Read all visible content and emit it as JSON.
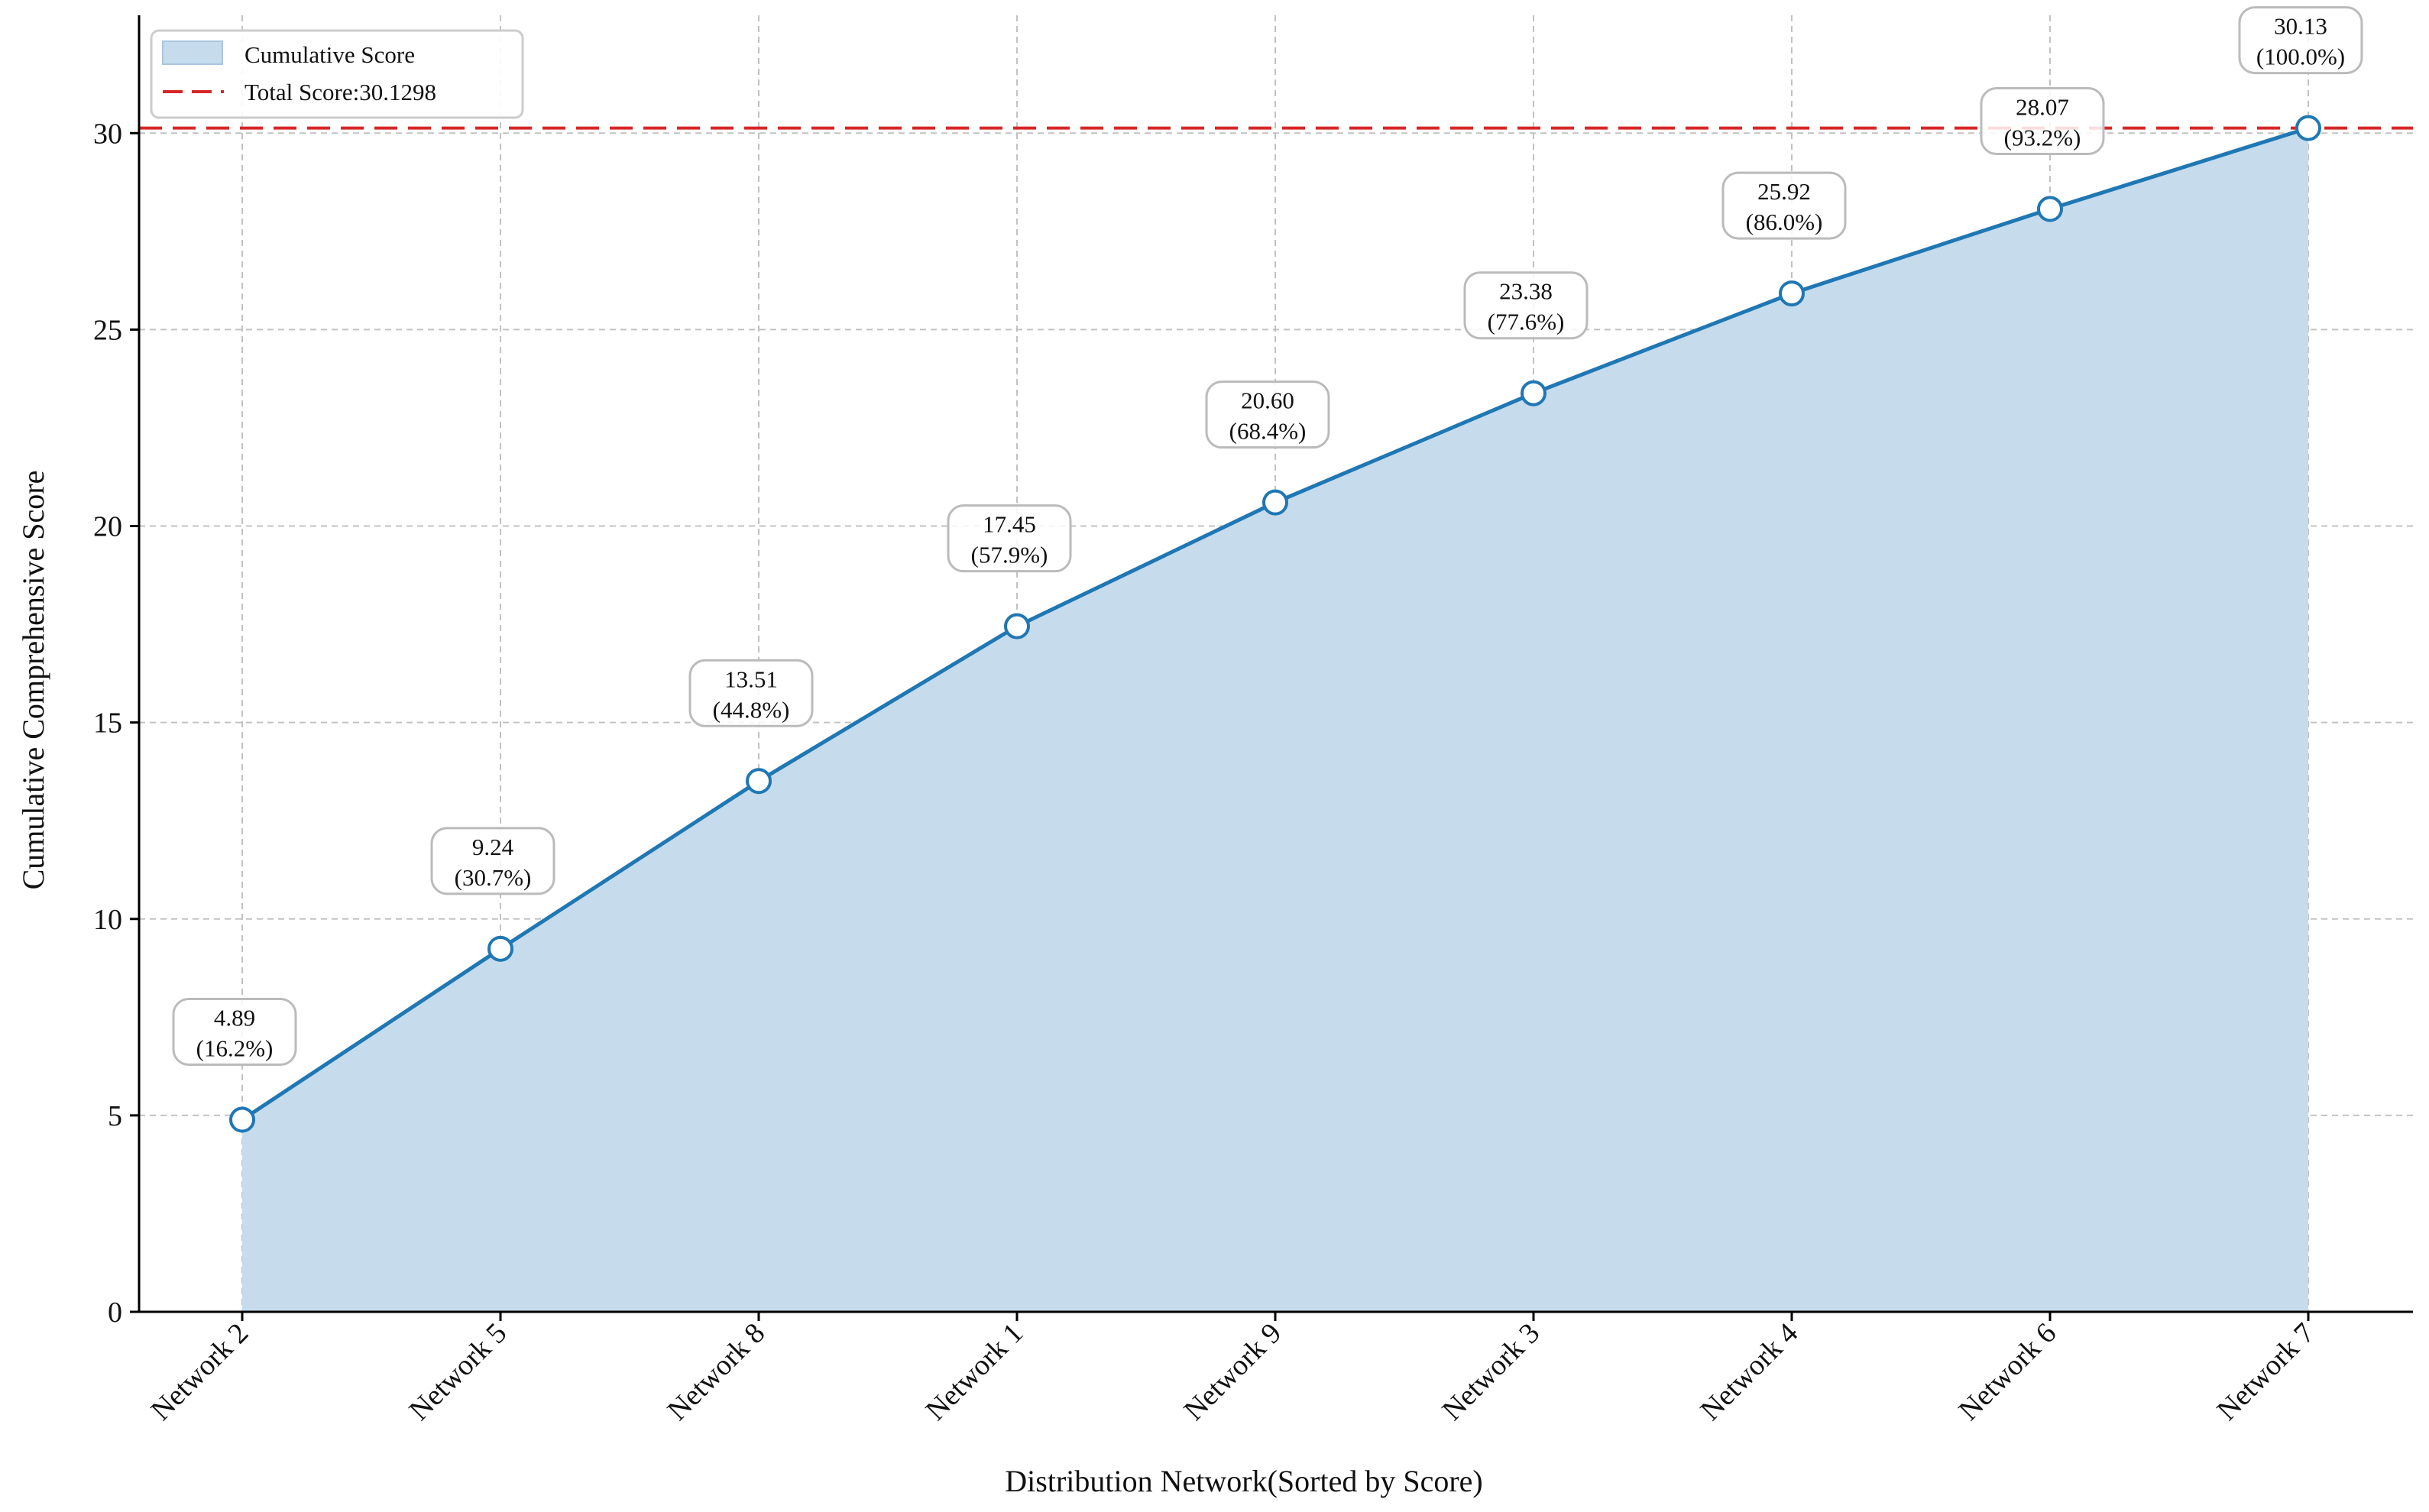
{
  "chart_data": {
    "type": "area",
    "xlabel": "Distribution Network(Sorted by Score)",
    "ylabel": "Cumulative Comprehensive Score",
    "categories": [
      "Network 2",
      "Network 5",
      "Network 8",
      "Network 1",
      "Network 9",
      "Network 3",
      "Network 4",
      "Network 6",
      "Network 7"
    ],
    "series": [
      {
        "name": "Cumulative Score",
        "values": [
          4.89,
          9.24,
          13.51,
          17.45,
          20.6,
          23.38,
          25.92,
          28.07,
          30.13
        ],
        "percent_labels": [
          "(16.2%)",
          "(30.7%)",
          "(44.8%)",
          "(57.9%)",
          "(68.4%)",
          "(77.6%)",
          "(86.0%)",
          "(93.2%)",
          "(100.0%)"
        ]
      }
    ],
    "reference_line": {
      "name": "Total Score:30.1298",
      "value": 30.1298
    },
    "ylim": [
      0,
      33
    ],
    "yticks": [
      0,
      5,
      10,
      15,
      20,
      25,
      30
    ],
    "grid": true,
    "legend_position": "top-left",
    "colors": {
      "line": "#1f77b4",
      "fill": "#c6dbec",
      "reference": "#d62728",
      "grid": "#bbbbbb"
    }
  }
}
